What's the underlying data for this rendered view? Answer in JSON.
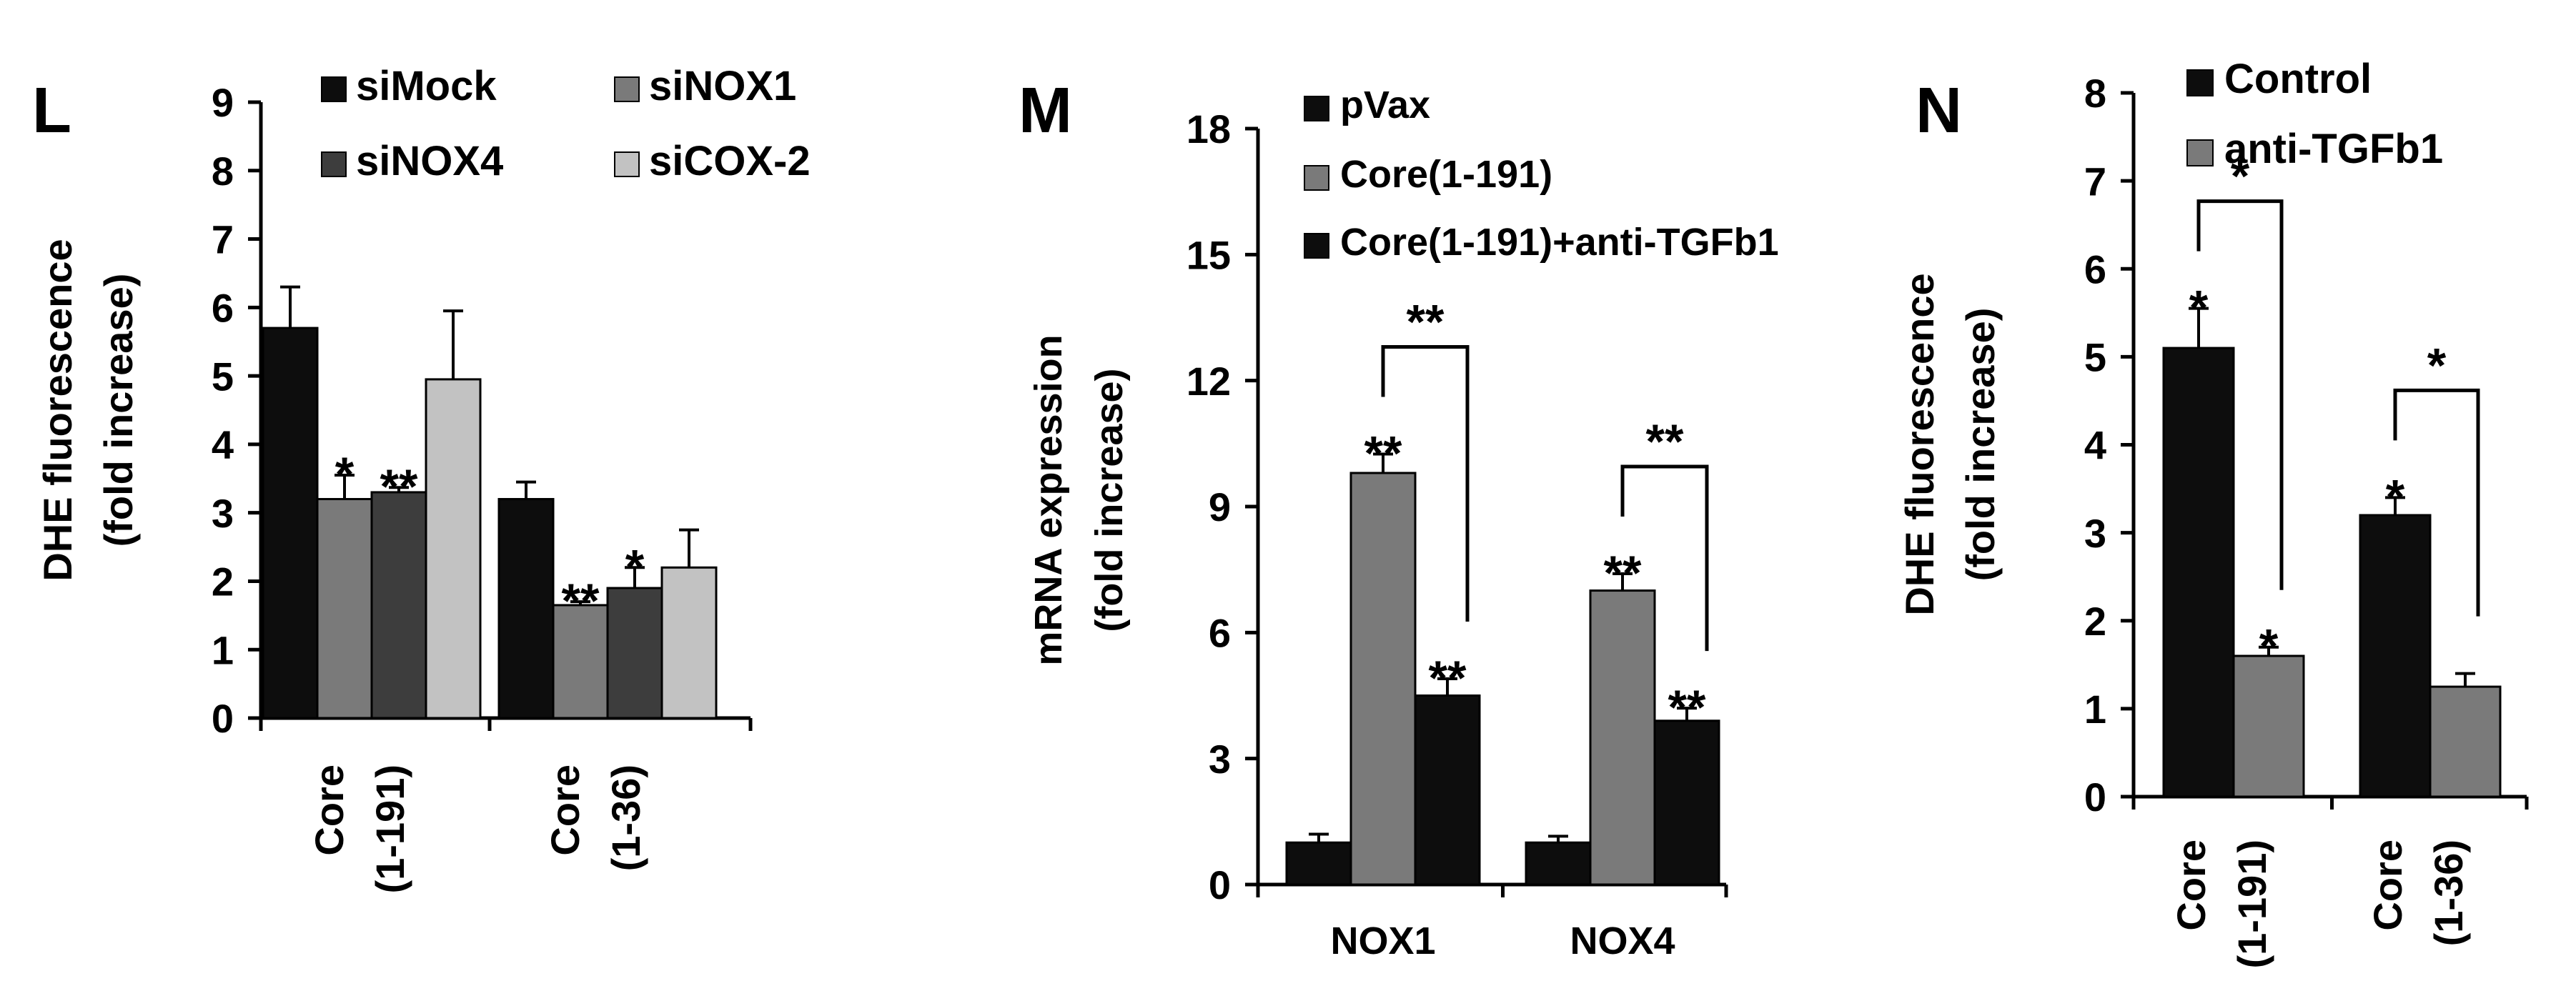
{
  "colors": {
    "black": "#0d0d0d",
    "dark_gray": "#3d3d3d",
    "mid_gray": "#7a7a7a",
    "light_gray": "#c2c2c2"
  },
  "chart_data": [
    {
      "panel": "L",
      "type": "bar",
      "ylabel": "DHE fluorescence\n(fold increase)",
      "ylim": [
        0,
        9
      ],
      "yticks": [
        0,
        1,
        2,
        3,
        4,
        5,
        6,
        7,
        8,
        9
      ],
      "categories": [
        "Core\n(1-191)",
        "Core\n(1-36)"
      ],
      "series": [
        {
          "name": "siMock",
          "color": "#0d0d0d",
          "values": [
            5.7,
            3.2
          ],
          "errors": [
            0.6,
            0.25
          ],
          "sig": [
            "",
            ""
          ]
        },
        {
          "name": "siNOX1",
          "color": "#7a7a7a",
          "values": [
            3.2,
            1.65
          ],
          "errors": [
            0.35,
            0.05
          ],
          "sig": [
            "*",
            "**"
          ]
        },
        {
          "name": "siNOX4",
          "color": "#3d3d3d",
          "values": [
            3.3,
            1.9
          ],
          "errors": [
            0.07,
            0.3
          ],
          "sig": [
            "**",
            "*"
          ]
        },
        {
          "name": "siCOX-2",
          "color": "#c2c2c2",
          "values": [
            4.95,
            2.2
          ],
          "errors": [
            1.0,
            0.55
          ],
          "sig": [
            "",
            ""
          ]
        }
      ],
      "legend": "top, two columns"
    },
    {
      "panel": "M",
      "type": "bar",
      "ylabel": "mRNA expression\n(fold increase)",
      "ylim": [
        0,
        18
      ],
      "yticks": [
        0,
        3,
        6,
        9,
        12,
        15,
        18
      ],
      "categories": [
        "NOX1",
        "NOX4"
      ],
      "series": [
        {
          "name": "pVax",
          "color": "#0d0d0d",
          "values": [
            1.0,
            1.0
          ],
          "errors": [
            0.2,
            0.15
          ],
          "sig": [
            "",
            ""
          ]
        },
        {
          "name": "Core(1-191)",
          "color": "#7a7a7a",
          "values": [
            9.8,
            7.0
          ],
          "errors": [
            0.45,
            0.4
          ],
          "sig": [
            "**",
            "**"
          ]
        },
        {
          "name": "Core(1-191)+anti-TGFb1",
          "color": "#0d0d0d",
          "values": [
            4.5,
            3.9
          ],
          "errors": [
            0.4,
            0.3
          ],
          "sig": [
            "**",
            "**"
          ]
        }
      ],
      "brackets": [
        {
          "group": 0,
          "from": 1,
          "to": 2,
          "label": "**"
        },
        {
          "group": 1,
          "from": 1,
          "to": 2,
          "label": "**"
        }
      ],
      "legend": "top-right"
    },
    {
      "panel": "N",
      "type": "bar",
      "ylabel": "DHE fluorescence\n(fold increase)",
      "ylim": [
        0,
        8
      ],
      "yticks": [
        0,
        1,
        2,
        3,
        4,
        5,
        6,
        7,
        8
      ],
      "categories": [
        "Core\n(1-191)",
        "Core\n(1-36)"
      ],
      "series": [
        {
          "name": "Control",
          "color": "#0d0d0d",
          "values": [
            5.1,
            3.2
          ],
          "errors": [
            0.45,
            0.2
          ],
          "sig": [
            "*",
            "*"
          ]
        },
        {
          "name": "anti-TGFb1",
          "color": "#7a7a7a",
          "values": [
            1.6,
            1.25
          ],
          "errors": [
            0.1,
            0.15
          ],
          "sig": [
            "*",
            ""
          ]
        }
      ],
      "brackets": [
        {
          "group": 0,
          "from": 0,
          "to": 1,
          "label": "*"
        },
        {
          "group": 1,
          "from": 0,
          "to": 1,
          "label": "*"
        }
      ],
      "legend": "top"
    }
  ]
}
